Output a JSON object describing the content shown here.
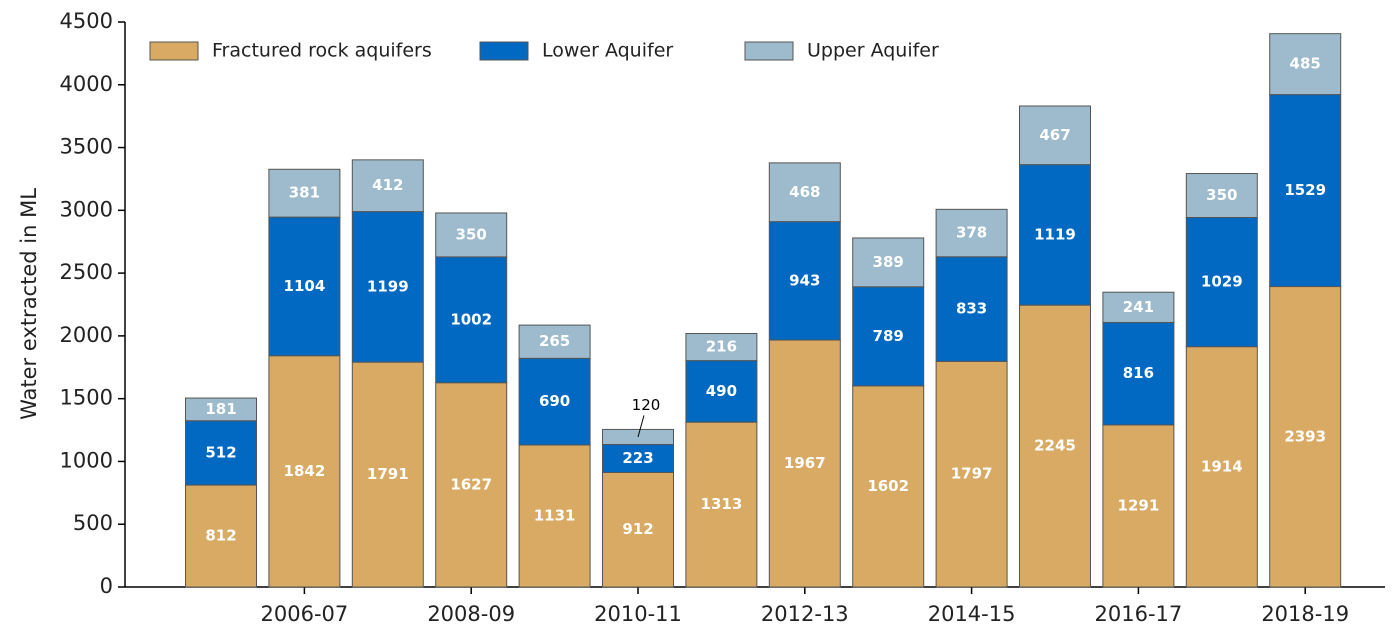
{
  "chart_data": {
    "type": "stacked_bar",
    "y_label": "Water extracted in ML",
    "categories": [
      null,
      "2006-07",
      null,
      "2008-09",
      null,
      "2010-11",
      null,
      "2012-13",
      null,
      "2014-15",
      null,
      "2016-17",
      null,
      "2018-19"
    ],
    "series": [
      {
        "name": "Fractured rock aquifers",
        "color": "#d9aa63",
        "values": [
          812,
          1842,
          1791,
          1627,
          1131,
          912,
          1313,
          1967,
          1602,
          1797,
          2245,
          1291,
          1914,
          2393
        ]
      },
      {
        "name": "Lower Aquifer",
        "color": "#0169c1",
        "values": [
          512,
          1104,
          1199,
          1002,
          690,
          223,
          490,
          943,
          789,
          833,
          1119,
          816,
          1029,
          1529
        ]
      },
      {
        "name": "Upper Aquifer",
        "color": "#9dbbcc",
        "values": [
          181,
          381,
          412,
          350,
          265,
          120,
          216,
          468,
          389,
          378,
          467,
          241,
          350,
          485
        ]
      }
    ],
    "ylim": [
      0,
      4500
    ],
    "yticks": [
      0,
      500,
      1000,
      1500,
      2000,
      2500,
      3000,
      3500,
      4000,
      4500
    ],
    "legend": "upper left"
  }
}
